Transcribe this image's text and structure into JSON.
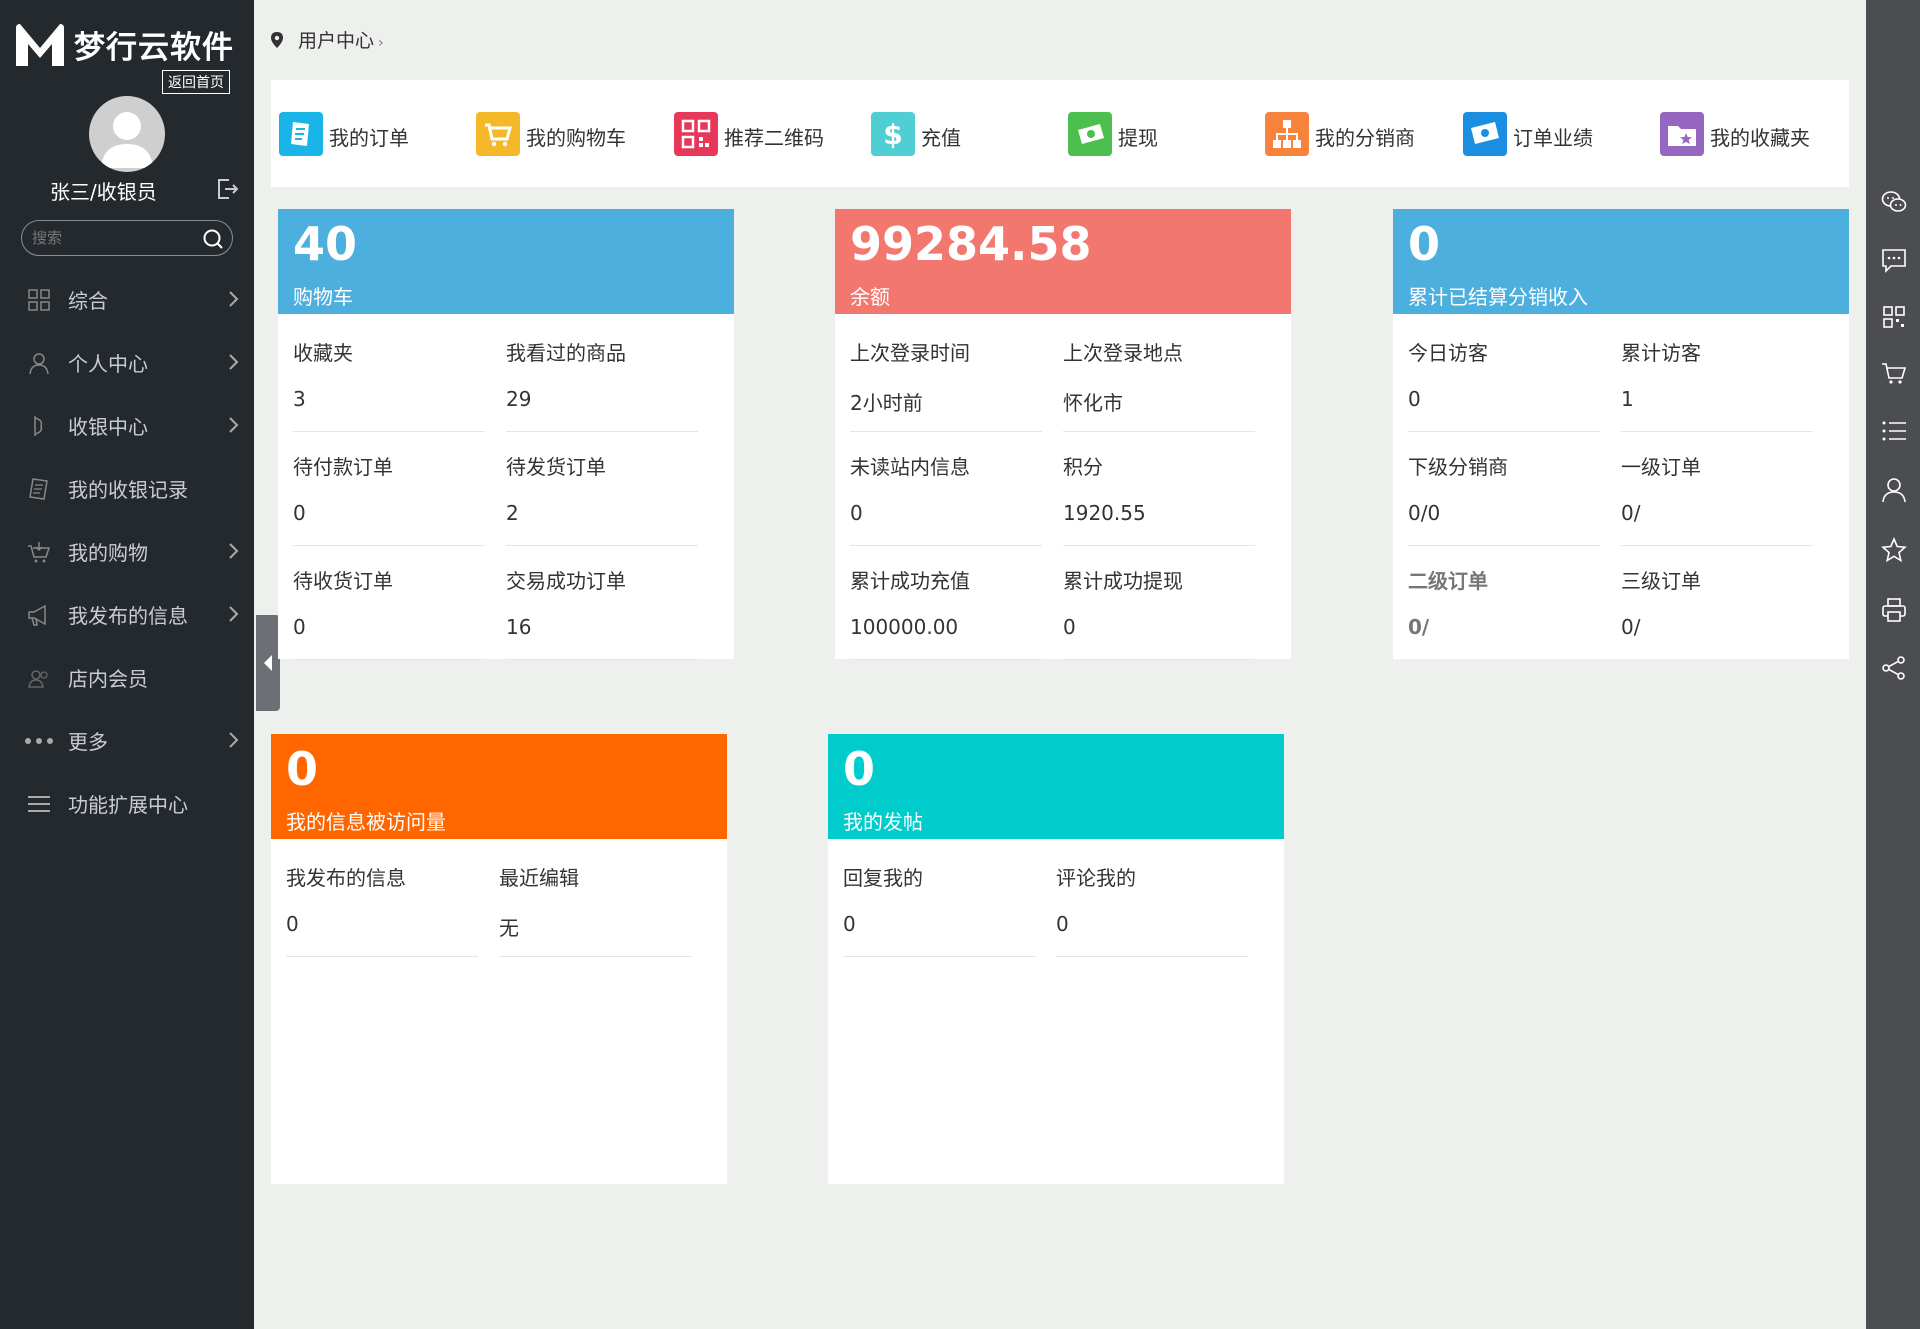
{
  "brand": {
    "name": "梦行云软件",
    "home_link": "返回首页"
  },
  "user": {
    "display_name": "张三/收银员"
  },
  "search": {
    "placeholder": "搜索"
  },
  "sidebar": {
    "items": [
      {
        "label": "综合",
        "icon": "grid-icon",
        "has_arrow": true
      },
      {
        "label": "个人中心",
        "icon": "user-icon",
        "has_arrow": true
      },
      {
        "label": "收银中心",
        "icon": "cashier-icon",
        "has_arrow": true
      },
      {
        "label": "我的收银记录",
        "icon": "receipt-icon",
        "has_arrow": false
      },
      {
        "label": "我的购物",
        "icon": "basket-icon",
        "has_arrow": true
      },
      {
        "label": "我发布的信息",
        "icon": "megaphone-icon",
        "has_arrow": true
      },
      {
        "label": "店内会员",
        "icon": "members-icon",
        "has_arrow": false
      },
      {
        "label": "更多",
        "icon": "dots-icon",
        "has_arrow": true
      },
      {
        "label": "功能扩展中心",
        "icon": "menu-lines-icon",
        "has_arrow": false
      }
    ]
  },
  "breadcrumb": {
    "current": "用户中心",
    "separator": "›"
  },
  "quick_links": [
    {
      "label": "我的订单",
      "icon": "order-icon",
      "color": "#1ab5e8"
    },
    {
      "label": "我的购物车",
      "icon": "cart-icon",
      "color": "#f5b829"
    },
    {
      "label": "推荐二维码",
      "icon": "qrcode-icon",
      "color": "#e8385a"
    },
    {
      "label": "充值",
      "icon": "dollar-icon",
      "color": "#4fcfd4"
    },
    {
      "label": "提现",
      "icon": "withdraw-icon",
      "color": "#4cbf4f"
    },
    {
      "label": "我的分销商",
      "icon": "hierarchy-icon",
      "color": "#f7823c"
    },
    {
      "label": "订单业绩",
      "icon": "money-icon",
      "color": "#1a8ee0"
    },
    {
      "label": "我的收藏夹",
      "icon": "folder-star-icon",
      "color": "#9567c0"
    }
  ],
  "cards": {
    "cart": {
      "value": "40",
      "title": "购物车",
      "color": "#4cafde",
      "cells": [
        {
          "label": "收藏夹",
          "value": "3"
        },
        {
          "label": "我看过的商品",
          "value": "29"
        },
        {
          "label": "待付款订单",
          "value": "0"
        },
        {
          "label": "待发货订单",
          "value": "2"
        },
        {
          "label": "待收货订单",
          "value": "0"
        },
        {
          "label": "交易成功订单",
          "value": "16"
        }
      ]
    },
    "balance": {
      "value": "99284.58",
      "title": "余额",
      "color": "#f2776f",
      "cells": [
        {
          "label": "上次登录时间",
          "value": "2小时前"
        },
        {
          "label": "上次登录地点",
          "value": "怀化市"
        },
        {
          "label": "未读站内信息",
          "value": "0"
        },
        {
          "label": "积分",
          "value": "1920.55"
        },
        {
          "label": "累计成功充值",
          "value": "100000.00"
        },
        {
          "label": "累计成功提现",
          "value": "0"
        }
      ]
    },
    "distribution": {
      "value": "0",
      "title": "累计已结算分销收入",
      "color": "#4cafde",
      "cells": [
        {
          "label": "今日访客",
          "value": "0"
        },
        {
          "label": "累计访客",
          "value": "1"
        },
        {
          "label": "下级分销商",
          "value": "0/0"
        },
        {
          "label": "一级订单",
          "value": "0/"
        },
        {
          "label": "二级订单",
          "value": "0/"
        },
        {
          "label": "三级订单",
          "value": "0/"
        }
      ]
    },
    "info_views": {
      "value": "0",
      "title": "我的信息被访问量",
      "color": "#ff6600",
      "cells": [
        {
          "label": "我发布的信息",
          "value": "0"
        },
        {
          "label": "最近编辑",
          "value": "无"
        }
      ]
    },
    "posts": {
      "value": "0",
      "title": "我的发帖",
      "color": "#00cccc",
      "cells": [
        {
          "label": "回复我的",
          "value": "0"
        },
        {
          "label": "评论我的",
          "value": "0"
        }
      ]
    }
  },
  "rightbar": {
    "icons": [
      "wechat-icon",
      "message-icon",
      "qrcode-icon",
      "cart-icon",
      "list-icon",
      "user-icon",
      "star-icon",
      "print-icon",
      "share-icon"
    ]
  }
}
